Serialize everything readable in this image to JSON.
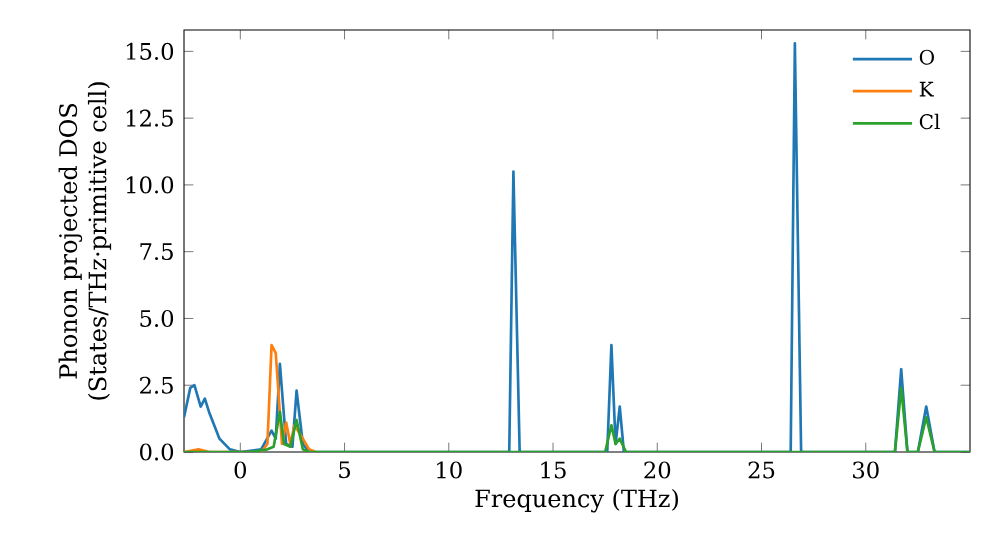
{
  "chart_data": {
    "type": "line",
    "xlabel": "Frequency (THz)",
    "ylabel": "Phonon projected DOS\n(States/THz·primitive cell)",
    "xlim": [
      -2.7,
      35
    ],
    "ylim": [
      0,
      15.8
    ],
    "xticks": [
      0,
      5,
      10,
      15,
      20,
      25,
      30
    ],
    "yticks": [
      {
        "value": 0,
        "label": "0.0"
      },
      {
        "value": 2.5,
        "label": "2.5"
      },
      {
        "value": 5,
        "label": "5.0"
      },
      {
        "value": 7.5,
        "label": "7.5"
      },
      {
        "value": 10,
        "label": "10.0"
      },
      {
        "value": 12.5,
        "label": "12.5"
      },
      {
        "value": 15,
        "label": "15.0"
      }
    ],
    "legend": "top right",
    "grid": false,
    "marker": "none",
    "line_style": "solid",
    "series": [
      {
        "name": "O",
        "color": "#1f77b4",
        "x": [
          -2.7,
          -2.4,
          -2.2,
          -1.9,
          -1.7,
          -1.5,
          -1.2,
          -1.0,
          -0.5,
          0,
          1.0,
          1.5,
          1.7,
          1.9,
          2.2,
          2.5,
          2.7,
          3.0,
          3.3,
          12.9,
          13.1,
          13.4,
          17.6,
          17.8,
          18.0,
          18.2,
          18.4,
          26.4,
          26.6,
          26.9,
          31.4,
          31.7,
          32.0,
          32.5,
          32.9,
          33.3,
          35
        ],
        "values": [
          1.3,
          2.4,
          2.5,
          1.7,
          2.0,
          1.5,
          0.9,
          0.5,
          0.1,
          0,
          0.1,
          0.8,
          0.5,
          3.3,
          0.3,
          0.2,
          2.3,
          0.3,
          0,
          0,
          10.5,
          0,
          0,
          4.0,
          0.3,
          1.7,
          0,
          0,
          15.3,
          0,
          0,
          3.1,
          0,
          0,
          1.7,
          0,
          0
        ]
      },
      {
        "name": "K",
        "color": "#ff7f0e",
        "x": [
          -2.7,
          -2.0,
          -1.5,
          1.0,
          1.3,
          1.5,
          1.7,
          2.0,
          2.2,
          2.4,
          2.6,
          3.0,
          3.3,
          3.6
        ],
        "values": [
          0,
          0.1,
          0,
          0,
          0.3,
          4.0,
          3.7,
          0.3,
          1.1,
          0.3,
          1.0,
          0.5,
          0.1,
          0
        ]
      },
      {
        "name": "Cl",
        "color": "#2ca02c",
        "x": [
          -2.7,
          0.5,
          1.3,
          1.6,
          1.9,
          2.1,
          2.4,
          2.7,
          3.0,
          3.3,
          17.5,
          17.8,
          18.0,
          18.2,
          18.5,
          31.4,
          31.7,
          32.0,
          32.5,
          32.9,
          33.3,
          35
        ],
        "values": [
          0,
          0,
          0.1,
          0.2,
          1.5,
          0.3,
          0.2,
          1.2,
          0.1,
          0,
          0,
          1.0,
          0.3,
          0.5,
          0,
          0,
          2.4,
          0,
          0,
          1.3,
          0,
          0
        ]
      }
    ]
  }
}
